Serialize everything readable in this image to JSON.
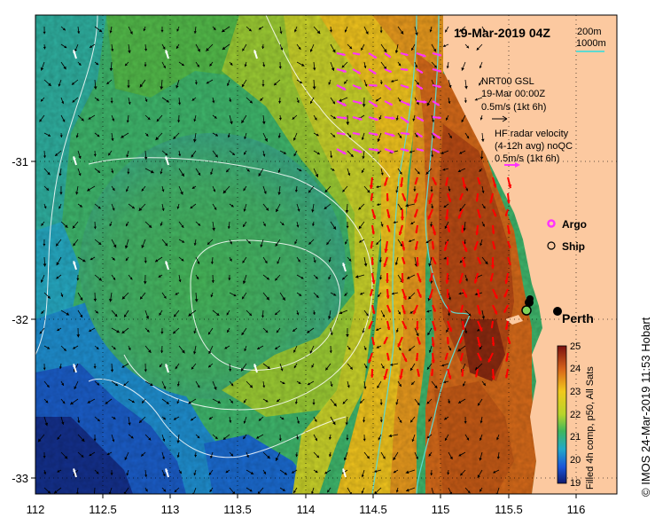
{
  "header": {
    "datetime": "19-Mar-2019 04Z"
  },
  "bathy_legend": {
    "line1": "200m",
    "line2": "1000m",
    "color": "#5fd9d0"
  },
  "nrt_legend": {
    "line1": "NRT00 GSL",
    "line2": "19-Mar 00:00Z",
    "line3": "0.5m/s (1kt 6h)"
  },
  "hf_legend": {
    "line1": "HF radar velocity",
    "line2": "(4-12h avg) noQC",
    "line3": "0.5m/s (1kt 6h)"
  },
  "symbols": {
    "argo": "Argo",
    "ship": "Ship",
    "argo_color": "#ff33ff"
  },
  "place": {
    "name": "Perth"
  },
  "colorbar": {
    "ticks": [
      "25",
      "24",
      "23",
      "22",
      "21",
      "20",
      "19"
    ],
    "min": 19,
    "max": 25,
    "label": "Filled 4h comp, p50, All Sats"
  },
  "side_label": "© IMOS 24-Mar-2019 11:53 Hobart",
  "axes": {
    "x_ticks": [
      "112",
      "112.5",
      "113",
      "113.5",
      "114",
      "114.5",
      "115",
      "115.5",
      "116"
    ],
    "y_ticks": [
      "-31",
      "-32",
      "-33"
    ]
  },
  "colors": {
    "land": "#fcc9a0",
    "argo": "#ff33ff",
    "hf_arrow": "#ff0000"
  }
}
